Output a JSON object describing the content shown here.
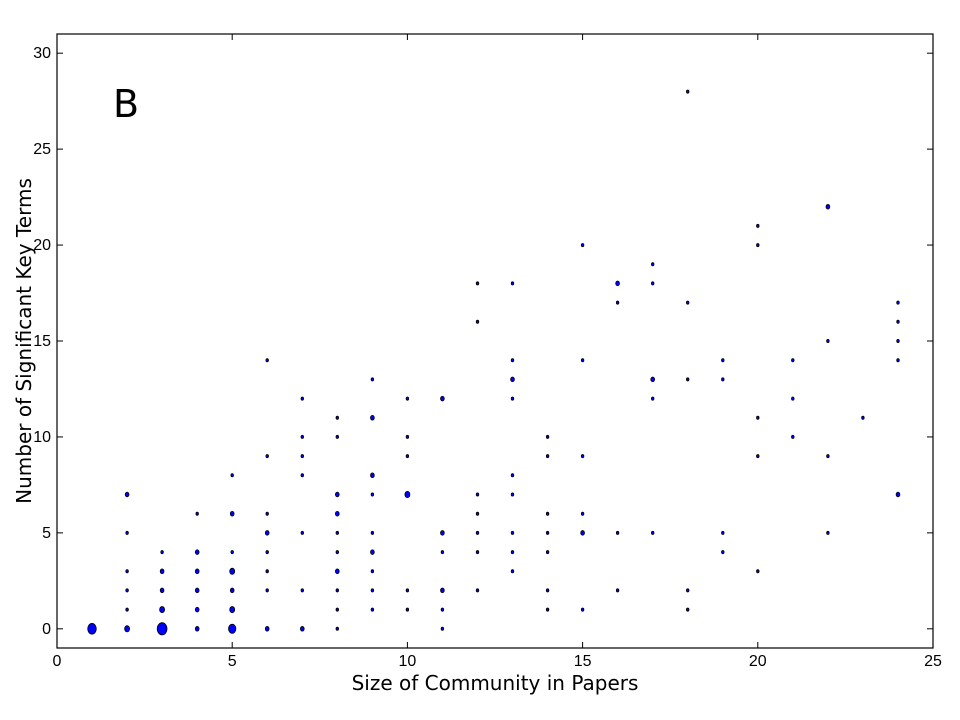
{
  "chart_data": {
    "type": "scatter",
    "panel_label": "B",
    "xlabel": "Size of Community in Papers",
    "ylabel": "Number of Significant Key Terms",
    "xlim": [
      0,
      25
    ],
    "ylim": [
      -1,
      31
    ],
    "xticks": [
      "0",
      "5",
      "10",
      "15",
      "20",
      "25"
    ],
    "yticks": [
      "0",
      "5",
      "10",
      "15",
      "20",
      "25",
      "30"
    ],
    "grid": false,
    "marker_color": "#0000ff",
    "marker_edge_color": "#000000",
    "points": [
      {
        "x": 1,
        "y": 0,
        "n": 6
      },
      {
        "x": 2,
        "y": 0,
        "n": 3
      },
      {
        "x": 2,
        "y": 1,
        "n": 1
      },
      {
        "x": 2,
        "y": 2,
        "n": 1
      },
      {
        "x": 2,
        "y": 3,
        "n": 1
      },
      {
        "x": 2,
        "y": 5,
        "n": 1
      },
      {
        "x": 2,
        "y": 7,
        "n": 2
      },
      {
        "x": 3,
        "y": 0,
        "n": 7
      },
      {
        "x": 3,
        "y": 1,
        "n": 3
      },
      {
        "x": 3,
        "y": 2,
        "n": 2
      },
      {
        "x": 3,
        "y": 3,
        "n": 2
      },
      {
        "x": 3,
        "y": 4,
        "n": 1
      },
      {
        "x": 4,
        "y": 0,
        "n": 2
      },
      {
        "x": 4,
        "y": 1,
        "n": 2
      },
      {
        "x": 4,
        "y": 2,
        "n": 2
      },
      {
        "x": 4,
        "y": 3,
        "n": 2
      },
      {
        "x": 4,
        "y": 4,
        "n": 2
      },
      {
        "x": 4,
        "y": 6,
        "n": 1
      },
      {
        "x": 5,
        "y": 0,
        "n": 5
      },
      {
        "x": 5,
        "y": 1,
        "n": 3
      },
      {
        "x": 5,
        "y": 2,
        "n": 2
      },
      {
        "x": 5,
        "y": 3,
        "n": 3
      },
      {
        "x": 5,
        "y": 4,
        "n": 1
      },
      {
        "x": 5,
        "y": 6,
        "n": 2
      },
      {
        "x": 5,
        "y": 8,
        "n": 1
      },
      {
        "x": 6,
        "y": 0,
        "n": 2
      },
      {
        "x": 6,
        "y": 2,
        "n": 1
      },
      {
        "x": 6,
        "y": 3,
        "n": 1
      },
      {
        "x": 6,
        "y": 4,
        "n": 1
      },
      {
        "x": 6,
        "y": 5,
        "n": 2
      },
      {
        "x": 6,
        "y": 6,
        "n": 1
      },
      {
        "x": 6,
        "y": 9,
        "n": 1
      },
      {
        "x": 6,
        "y": 14,
        "n": 1
      },
      {
        "x": 7,
        "y": 0,
        "n": 2
      },
      {
        "x": 7,
        "y": 2,
        "n": 1
      },
      {
        "x": 7,
        "y": 5,
        "n": 1
      },
      {
        "x": 7,
        "y": 8,
        "n": 1
      },
      {
        "x": 7,
        "y": 9,
        "n": 1
      },
      {
        "x": 7,
        "y": 10,
        "n": 1
      },
      {
        "x": 7,
        "y": 12,
        "n": 1
      },
      {
        "x": 8,
        "y": 0,
        "n": 1
      },
      {
        "x": 8,
        "y": 1,
        "n": 1
      },
      {
        "x": 8,
        "y": 2,
        "n": 1
      },
      {
        "x": 8,
        "y": 3,
        "n": 2
      },
      {
        "x": 8,
        "y": 4,
        "n": 1
      },
      {
        "x": 8,
        "y": 5,
        "n": 1
      },
      {
        "x": 8,
        "y": 6,
        "n": 2
      },
      {
        "x": 8,
        "y": 7,
        "n": 2
      },
      {
        "x": 8,
        "y": 10,
        "n": 1
      },
      {
        "x": 8,
        "y": 11,
        "n": 1
      },
      {
        "x": 9,
        "y": 1,
        "n": 1
      },
      {
        "x": 9,
        "y": 2,
        "n": 1
      },
      {
        "x": 9,
        "y": 3,
        "n": 1
      },
      {
        "x": 9,
        "y": 4,
        "n": 2
      },
      {
        "x": 9,
        "y": 5,
        "n": 1
      },
      {
        "x": 9,
        "y": 7,
        "n": 1
      },
      {
        "x": 9,
        "y": 8,
        "n": 2
      },
      {
        "x": 9,
        "y": 11,
        "n": 2
      },
      {
        "x": 9,
        "y": 13,
        "n": 1
      },
      {
        "x": 10,
        "y": 1,
        "n": 1
      },
      {
        "x": 10,
        "y": 2,
        "n": 1
      },
      {
        "x": 10,
        "y": 7,
        "n": 3
      },
      {
        "x": 10,
        "y": 9,
        "n": 1
      },
      {
        "x": 10,
        "y": 10,
        "n": 1
      },
      {
        "x": 10,
        "y": 12,
        "n": 1
      },
      {
        "x": 11,
        "y": 0,
        "n": 1
      },
      {
        "x": 11,
        "y": 1,
        "n": 1
      },
      {
        "x": 11,
        "y": 2,
        "n": 2
      },
      {
        "x": 11,
        "y": 4,
        "n": 1
      },
      {
        "x": 11,
        "y": 5,
        "n": 2
      },
      {
        "x": 11,
        "y": 12,
        "n": 2
      },
      {
        "x": 12,
        "y": 2,
        "n": 1
      },
      {
        "x": 12,
        "y": 4,
        "n": 1
      },
      {
        "x": 12,
        "y": 5,
        "n": 1
      },
      {
        "x": 12,
        "y": 6,
        "n": 1
      },
      {
        "x": 12,
        "y": 7,
        "n": 1
      },
      {
        "x": 12,
        "y": 16,
        "n": 1
      },
      {
        "x": 12,
        "y": 18,
        "n": 1
      },
      {
        "x": 13,
        "y": 3,
        "n": 1
      },
      {
        "x": 13,
        "y": 4,
        "n": 1
      },
      {
        "x": 13,
        "y": 5,
        "n": 1
      },
      {
        "x": 13,
        "y": 7,
        "n": 1
      },
      {
        "x": 13,
        "y": 8,
        "n": 1
      },
      {
        "x": 13,
        "y": 12,
        "n": 1
      },
      {
        "x": 13,
        "y": 13,
        "n": 2
      },
      {
        "x": 13,
        "y": 14,
        "n": 1
      },
      {
        "x": 13,
        "y": 18,
        "n": 1
      },
      {
        "x": 14,
        "y": 1,
        "n": 1
      },
      {
        "x": 14,
        "y": 2,
        "n": 1
      },
      {
        "x": 14,
        "y": 4,
        "n": 1
      },
      {
        "x": 14,
        "y": 5,
        "n": 1
      },
      {
        "x": 14,
        "y": 6,
        "n": 1
      },
      {
        "x": 14,
        "y": 9,
        "n": 1
      },
      {
        "x": 14,
        "y": 10,
        "n": 1
      },
      {
        "x": 15,
        "y": 1,
        "n": 1
      },
      {
        "x": 15,
        "y": 5,
        "n": 2
      },
      {
        "x": 15,
        "y": 6,
        "n": 1
      },
      {
        "x": 15,
        "y": 9,
        "n": 1
      },
      {
        "x": 15,
        "y": 14,
        "n": 1
      },
      {
        "x": 15,
        "y": 20,
        "n": 1
      },
      {
        "x": 16,
        "y": 2,
        "n": 1
      },
      {
        "x": 16,
        "y": 5,
        "n": 1
      },
      {
        "x": 16,
        "y": 17,
        "n": 1
      },
      {
        "x": 16,
        "y": 18,
        "n": 2
      },
      {
        "x": 17,
        "y": 5,
        "n": 1
      },
      {
        "x": 17,
        "y": 12,
        "n": 1
      },
      {
        "x": 17,
        "y": 13,
        "n": 2
      },
      {
        "x": 17,
        "y": 18,
        "n": 1
      },
      {
        "x": 17,
        "y": 19,
        "n": 1
      },
      {
        "x": 18,
        "y": 1,
        "n": 1
      },
      {
        "x": 18,
        "y": 2,
        "n": 1
      },
      {
        "x": 18,
        "y": 13,
        "n": 1
      },
      {
        "x": 18,
        "y": 17,
        "n": 1
      },
      {
        "x": 18,
        "y": 28,
        "n": 1
      },
      {
        "x": 19,
        "y": 4,
        "n": 1
      },
      {
        "x": 19,
        "y": 5,
        "n": 1
      },
      {
        "x": 19,
        "y": 13,
        "n": 1
      },
      {
        "x": 19,
        "y": 14,
        "n": 1
      },
      {
        "x": 20,
        "y": 3,
        "n": 1
      },
      {
        "x": 20,
        "y": 9,
        "n": 1
      },
      {
        "x": 20,
        "y": 11,
        "n": 1
      },
      {
        "x": 20,
        "y": 20,
        "n": 1
      },
      {
        "x": 20,
        "y": 21,
        "n": 1
      },
      {
        "x": 21,
        "y": 10,
        "n": 1
      },
      {
        "x": 21,
        "y": 12,
        "n": 1
      },
      {
        "x": 21,
        "y": 14,
        "n": 1
      },
      {
        "x": 22,
        "y": 5,
        "n": 1
      },
      {
        "x": 22,
        "y": 9,
        "n": 1
      },
      {
        "x": 22,
        "y": 15,
        "n": 1
      },
      {
        "x": 22,
        "y": 22,
        "n": 2
      },
      {
        "x": 23,
        "y": 11,
        "n": 1
      },
      {
        "x": 24,
        "y": 7,
        "n": 2
      },
      {
        "x": 24,
        "y": 14,
        "n": 1
      },
      {
        "x": 24,
        "y": 15,
        "n": 1
      },
      {
        "x": 24,
        "y": 16,
        "n": 1
      },
      {
        "x": 24,
        "y": 17,
        "n": 1
      }
    ]
  }
}
